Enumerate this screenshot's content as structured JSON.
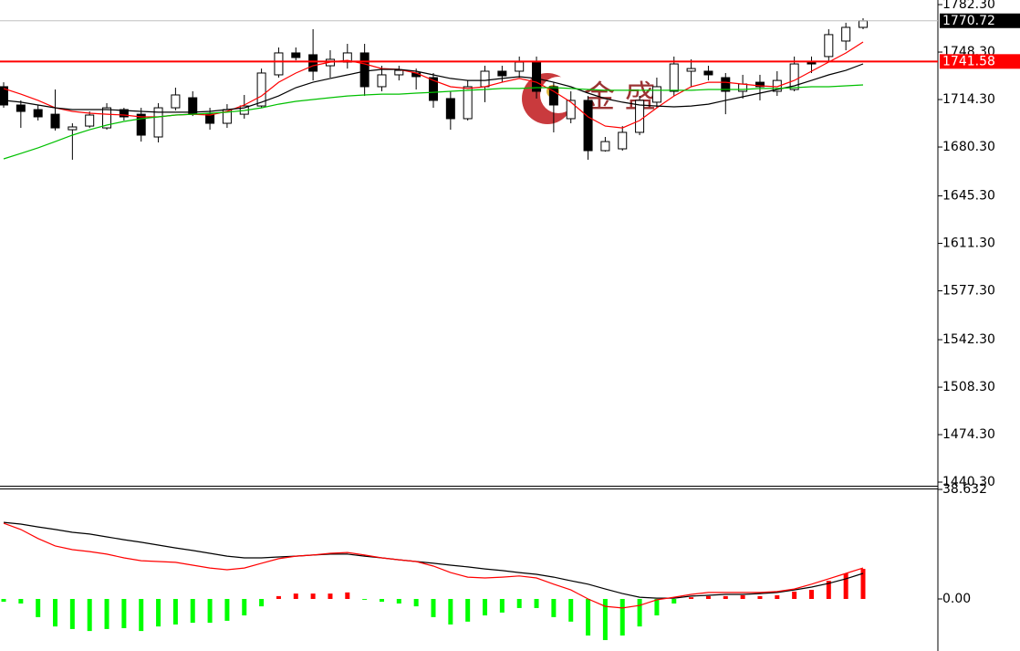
{
  "chart_data": [
    {
      "type": "candlestick",
      "open": [
        1723.5,
        1710.4,
        1707.1,
        1703.8,
        1692.7,
        1695.3,
        1694.0,
        1707.1,
        1703.8,
        1687.5,
        1708.4,
        1715.6,
        1703.8,
        1697.3,
        1703.8,
        1709.7,
        1732.0,
        1747.7,
        1746.4,
        1738.5,
        1741.1,
        1747.7,
        1723.5,
        1732.0,
        1733.3,
        1730.0,
        1715.0,
        1700.6,
        1723.5,
        1734.6,
        1734.6,
        1741.1,
        1723.5,
        1700.6,
        1713.7,
        1677.7,
        1679.0,
        1690.8,
        1712.4,
        1720.2,
        1734.6,
        1734.6,
        1730.0,
        1720.2,
        1726.7,
        1720.2,
        1721.5,
        1741.1,
        1745.1,
        1756.2,
        1766.0
      ],
      "high": [
        1726.7,
        1713.7,
        1710.4,
        1721.5,
        1697.3,
        1705.8,
        1711.7,
        1708.4,
        1708.4,
        1711.7,
        1722.8,
        1720.2,
        1708.4,
        1711.0,
        1717.6,
        1736.5,
        1751.6,
        1751.6,
        1764.7,
        1749.6,
        1754.2,
        1754.2,
        1738.5,
        1738.5,
        1736.5,
        1733.3,
        1720.2,
        1728.0,
        1738.5,
        1738.5,
        1745.1,
        1745.1,
        1726.7,
        1720.2,
        1716.9,
        1687.5,
        1695.3,
        1716.9,
        1730.0,
        1745.1,
        1743.1,
        1738.5,
        1733.3,
        1732.0,
        1732.0,
        1734.6,
        1745.1,
        1745.1,
        1764.7,
        1769.3,
        1772.5
      ],
      "low": [
        1708.4,
        1694.0,
        1699.3,
        1692.1,
        1671.2,
        1694.0,
        1692.7,
        1699.3,
        1684.2,
        1683.6,
        1706.5,
        1702.5,
        1692.7,
        1694.0,
        1700.6,
        1708.4,
        1730.0,
        1742.4,
        1728.0,
        1730.0,
        1736.5,
        1716.9,
        1720.2,
        1728.0,
        1721.5,
        1708.4,
        1692.7,
        1699.3,
        1712.4,
        1726.7,
        1730.0,
        1715.0,
        1690.8,
        1697.3,
        1671.2,
        1677.0,
        1677.7,
        1688.8,
        1708.4,
        1716.9,
        1723.5,
        1728.0,
        1703.8,
        1715.0,
        1713.7,
        1716.9,
        1720.2,
        1733.3,
        1741.1,
        1749.6,
        1764.7
      ],
      "close": [
        1710.4,
        1705.8,
        1701.9,
        1694.0,
        1694.7,
        1703.2,
        1708.4,
        1701.9,
        1688.8,
        1708.4,
        1717.6,
        1703.8,
        1697.3,
        1707.1,
        1709.7,
        1733.3,
        1747.7,
        1744.4,
        1734.6,
        1743.1,
        1747.7,
        1723.5,
        1732.0,
        1735.2,
        1730.7,
        1713.7,
        1700.6,
        1723.5,
        1734.6,
        1731.3,
        1741.1,
        1720.2,
        1710.4,
        1713.7,
        1677.7,
        1684.2,
        1690.8,
        1713.7,
        1723.5,
        1739.8,
        1736.5,
        1732.0,
        1720.2,
        1725.4,
        1723.5,
        1728.0,
        1739.8,
        1739.8,
        1760.8,
        1766.0,
        1770.72
      ],
      "up_color": "#ffffff",
      "down_color": "#000000",
      "series": [
        {
          "color": "#ff0000",
          "values": [
            1722.2,
            1718.2,
            1713.7,
            1708.4,
            1705.8,
            1704.5,
            1703.8,
            1703.2,
            1701.9,
            1701.9,
            1703.2,
            1703.8,
            1703.2,
            1705.8,
            1710.4,
            1716.9,
            1726.7,
            1733.3,
            1738.5,
            1741.1,
            1742.4,
            1739.8,
            1736.5,
            1735.9,
            1733.3,
            1728.0,
            1723.5,
            1722.2,
            1723.5,
            1726.7,
            1729.4,
            1726.7,
            1720.2,
            1712.4,
            1701.9,
            1695.3,
            1694.0,
            1699.3,
            1708.4,
            1716.9,
            1723.5,
            1726.7,
            1726.7,
            1725.4,
            1724.1,
            1723.5,
            1728.0,
            1734.6,
            1741.1,
            1747.7,
            1755.5
          ]
        },
        {
          "color": "#000000",
          "values": [
            1713.7,
            1712.4,
            1710.4,
            1708.4,
            1707.1,
            1707.1,
            1707.1,
            1706.5,
            1705.8,
            1705.2,
            1705.2,
            1705.2,
            1705.8,
            1707.1,
            1708.4,
            1712.4,
            1716.9,
            1722.8,
            1726.7,
            1729.4,
            1732.0,
            1734.6,
            1735.9,
            1735.9,
            1734.6,
            1732.0,
            1729.4,
            1728.0,
            1728.0,
            1729.4,
            1730.7,
            1729.4,
            1726.7,
            1723.5,
            1718.9,
            1715.0,
            1712.4,
            1710.4,
            1709.7,
            1709.1,
            1709.7,
            1711.0,
            1713.7,
            1716.3,
            1718.9,
            1721.5,
            1724.1,
            1728.0,
            1732.0,
            1735.2,
            1739.8
          ]
        },
        {
          "color": "#00c000",
          "values": [
            1671.8,
            1675.7,
            1679.7,
            1684.2,
            1688.8,
            1692.7,
            1696.0,
            1698.6,
            1700.6,
            1701.9,
            1703.2,
            1703.8,
            1704.5,
            1705.2,
            1706.5,
            1708.4,
            1711.0,
            1713.0,
            1714.3,
            1715.6,
            1716.9,
            1717.6,
            1718.2,
            1718.2,
            1718.9,
            1719.5,
            1720.2,
            1720.9,
            1721.5,
            1722.2,
            1722.2,
            1722.8,
            1722.8,
            1722.2,
            1721.5,
            1720.9,
            1720.9,
            1720.9,
            1720.9,
            1720.9,
            1720.9,
            1721.5,
            1721.5,
            1721.5,
            1722.2,
            1722.2,
            1722.8,
            1723.5,
            1723.5,
            1724.1,
            1724.8
          ]
        }
      ],
      "ylim": [
        1437.7,
        1785.6
      ],
      "yticks": [
        {
          "value": 1782.3,
          "label": "1782.30"
        },
        {
          "value": 1748.3,
          "label": "1748.30"
        },
        {
          "value": 1714.3,
          "label": "1714.30"
        },
        {
          "value": 1680.3,
          "label": "1680.30"
        },
        {
          "value": 1645.3,
          "label": "1645.30"
        },
        {
          "value": 1611.3,
          "label": "1611.30"
        },
        {
          "value": 1577.3,
          "label": "1577.30"
        },
        {
          "value": 1542.3,
          "label": "1542.30"
        },
        {
          "value": 1508.3,
          "label": "1508.30"
        },
        {
          "value": 1474.3,
          "label": "1474.30"
        },
        {
          "value": 1440.3,
          "label": "1440.30"
        }
      ],
      "last_price": 1770.72,
      "level": 1741.58,
      "level_color": "#ff0000"
    },
    {
      "type": "macd",
      "values": [
        -1.0,
        -1.6,
        -6.4,
        -9.7,
        -10.6,
        -11.3,
        -10.6,
        -10.3,
        -11.3,
        -9.7,
        -9.0,
        -8.4,
        -8.4,
        -7.7,
        -5.8,
        -2.6,
        1.0,
        1.9,
        1.9,
        1.9,
        2.3,
        -0.3,
        -1.0,
        -1.6,
        -2.6,
        -6.4,
        -9.0,
        -8.0,
        -5.8,
        -4.8,
        -3.2,
        -3.2,
        -6.4,
        -8.0,
        -12.9,
        -14.5,
        -12.9,
        -9.7,
        -5.8,
        -1.6,
        0.6,
        1.0,
        1.0,
        1.3,
        1.0,
        1.3,
        2.6,
        3.2,
        6.4,
        9.0,
        10.6
      ],
      "up_color": "#ff0000",
      "down_color": "#00ff00",
      "series": [
        {
          "color": "#000000",
          "values": [
            27.0,
            26.4,
            25.4,
            24.5,
            23.5,
            22.9,
            21.9,
            20.9,
            20.0,
            19.0,
            18.0,
            17.1,
            16.1,
            15.1,
            14.5,
            14.5,
            14.8,
            15.1,
            15.5,
            15.8,
            15.8,
            15.1,
            14.5,
            13.8,
            13.2,
            12.6,
            11.9,
            11.3,
            10.6,
            10.0,
            9.3,
            8.7,
            7.7,
            6.4,
            5.2,
            3.5,
            1.9,
            0.6,
            0.3,
            0.3,
            1.0,
            1.3,
            1.6,
            1.6,
            1.9,
            2.3,
            3.2,
            4.2,
            5.5,
            7.1,
            9.0
          ]
        },
        {
          "color": "#ff0000",
          "values": [
            26.7,
            24.5,
            21.3,
            18.7,
            17.4,
            16.7,
            15.8,
            14.5,
            13.5,
            13.2,
            12.9,
            11.9,
            10.9,
            10.3,
            10.9,
            12.6,
            14.2,
            15.1,
            15.5,
            16.1,
            16.4,
            15.5,
            14.5,
            13.8,
            13.2,
            11.6,
            9.3,
            7.7,
            7.4,
            7.7,
            8.1,
            7.4,
            5.2,
            3.2,
            0,
            -2.6,
            -3.2,
            -2.3,
            -0.3,
            0.6,
            1.6,
            2.3,
            2.3,
            2.3,
            2.3,
            2.6,
            3.5,
            5.2,
            7.1,
            9.0,
            10.9
          ]
        }
      ],
      "ylim": [
        -18.35,
        38.632
      ],
      "yticks": [
        {
          "value": 38.632,
          "label": "38.632"
        },
        {
          "value": 0,
          "label": "0.00"
        }
      ]
    }
  ],
  "watermark": "金 盛"
}
